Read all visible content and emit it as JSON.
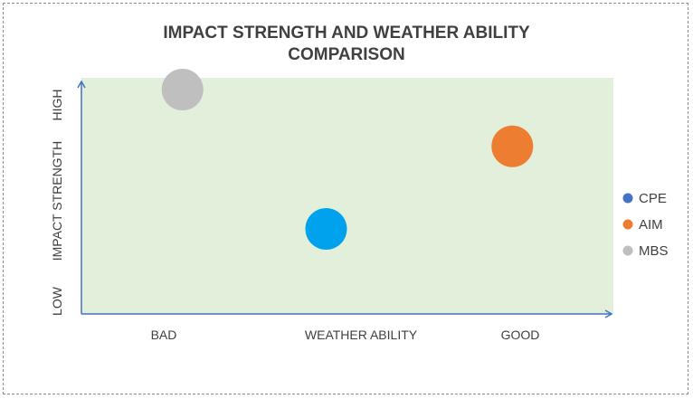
{
  "chart_data": {
    "type": "scatter",
    "title_lines": [
      "IMPACT STRENGTH AND WEATHER ABILITY",
      "COMPARISON"
    ],
    "xlabel": "WEATHER ABILITY",
    "ylabel": "IMPACT STRENGTH",
    "x_low_label": "BAD",
    "x_high_label": "GOOD",
    "y_low_label": "LOW",
    "y_high_label": "HIGH",
    "xlim": [
      0,
      10
    ],
    "ylim": [
      0,
      10
    ],
    "grid": false,
    "legend_position": "right",
    "plot_background": "#e2efda",
    "axis_color": "#4472c4",
    "series": [
      {
        "name": "CPE",
        "x": 4.6,
        "y": 3.6,
        "color": "#00a2ed",
        "legend_color": "#4472c4"
      },
      {
        "name": "AIM",
        "x": 8.1,
        "y": 7.1,
        "color": "#ed7d31",
        "legend_color": "#ed7d31"
      },
      {
        "name": "MBS",
        "x": 1.9,
        "y": 9.5,
        "color": "#bfbfbf",
        "legend_color": "#bfbfbf"
      }
    ]
  }
}
